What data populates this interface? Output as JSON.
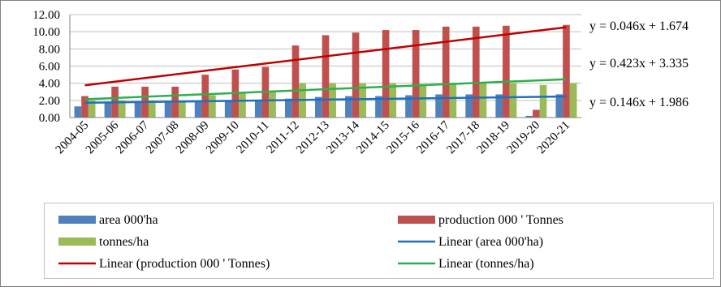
{
  "chart_data": {
    "type": "bar",
    "categories": [
      "2004-05",
      "2005-06",
      "2006-07",
      "2007-08",
      "2008-09",
      "2009-10",
      "2010-11",
      "2011-12",
      "2012-13",
      "2013-14",
      "2014-15",
      "2015-16",
      "2016-17",
      "2017-18",
      "2018-19",
      "2019-20",
      "2020-21"
    ],
    "series": [
      {
        "name": "area 000'ha",
        "color": "#4f81bd",
        "values": [
          1.3,
          1.8,
          1.8,
          1.8,
          1.9,
          1.9,
          1.9,
          2.2,
          2.4,
          2.5,
          2.5,
          2.6,
          2.7,
          2.7,
          2.7,
          0.2,
          2.7
        ]
      },
      {
        "name": "production 000 ' Tonnes",
        "color": "#c0504d",
        "values": [
          2.5,
          3.6,
          3.6,
          3.6,
          5.0,
          5.6,
          5.9,
          8.4,
          9.6,
          9.9,
          10.2,
          10.2,
          10.6,
          10.6,
          10.7,
          0.9,
          10.8
        ]
      },
      {
        "name": "tonnes/ha",
        "color": "#9bbb59",
        "values": [
          2.0,
          2.0,
          2.0,
          2.0,
          2.6,
          2.9,
          3.1,
          4.0,
          4.0,
          4.0,
          4.0,
          3.9,
          3.9,
          4.0,
          4.0,
          3.8,
          4.0
        ]
      }
    ],
    "trendlines": [
      {
        "name": "Linear (area 000'ha)",
        "color": "#1f6fbf",
        "slope": 0.046,
        "intercept": 1.674,
        "equation": "y = 0.046x + 1.674"
      },
      {
        "name": "Linear (production 000 ' Tonnes)",
        "color": "#c00000",
        "slope": 0.423,
        "intercept": 3.335,
        "equation": "y = 0.423x + 3.335"
      },
      {
        "name": "Linear (tonnes/ha)",
        "color": "#2db04b",
        "slope": 0.146,
        "intercept": 1.986,
        "equation": "y = 0.146x + 1.986"
      }
    ],
    "yticks": [
      "0.00",
      "2.00",
      "4.00",
      "6.00",
      "8.00",
      "10.00",
      "12.00"
    ],
    "ylim": [
      0,
      12
    ],
    "grid": true,
    "legend_position": "bottom"
  }
}
